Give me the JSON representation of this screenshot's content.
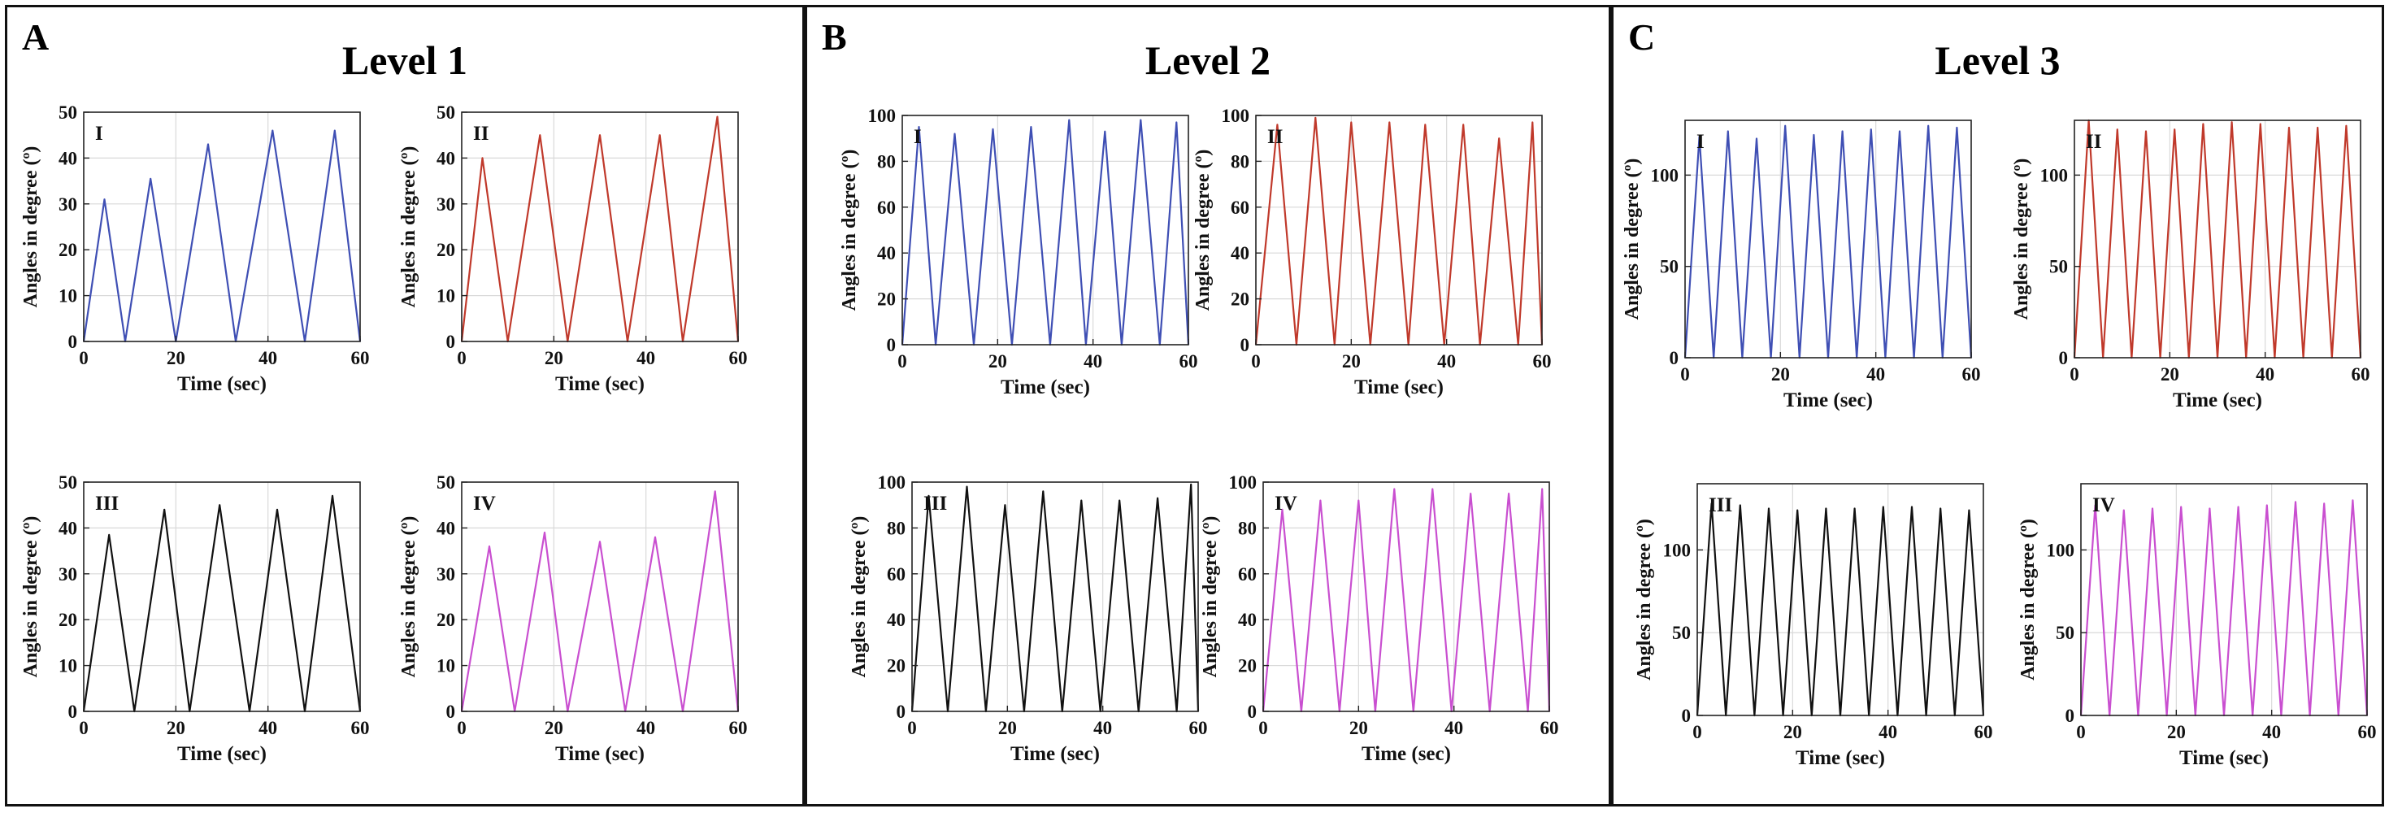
{
  "colors": {
    "blue": "#3f4fb4",
    "red": "#c0392b",
    "black": "#111111",
    "magenta": "#c94fd0",
    "grid": "#d9d9d9"
  },
  "panels": [
    {
      "letter": "A",
      "title": "Level 1"
    },
    {
      "letter": "B",
      "title": "Level 2"
    },
    {
      "letter": "C",
      "title": "Level 3"
    }
  ],
  "chart_data": [
    {
      "type": "line",
      "panel": "A",
      "subplot_label": "I",
      "color": "blue",
      "xlabel": "Time (sec)",
      "ylabel": "Angles in degree (º)",
      "xlim": [
        0,
        60
      ],
      "ylim": [
        0,
        50
      ],
      "xticks": [
        0,
        20,
        40,
        60
      ],
      "yticks": [
        0,
        10,
        20,
        30,
        40,
        50
      ],
      "grid": true,
      "x": [
        0,
        4.5,
        9,
        14.5,
        20,
        27,
        33,
        41,
        48,
        54.5,
        60
      ],
      "y": [
        0,
        31,
        0,
        35.5,
        0,
        43,
        0,
        46,
        0,
        46,
        0
      ]
    },
    {
      "type": "line",
      "panel": "A",
      "subplot_label": "II",
      "color": "red",
      "xlabel": "Time (sec)",
      "ylabel": "Angles in degree (º)",
      "xlim": [
        0,
        60
      ],
      "ylim": [
        0,
        50
      ],
      "xticks": [
        0,
        20,
        40,
        60
      ],
      "yticks": [
        0,
        10,
        20,
        30,
        40,
        50
      ],
      "grid": true,
      "x": [
        0,
        4.5,
        10,
        17,
        23,
        30,
        36,
        43,
        48,
        55.5,
        60
      ],
      "y": [
        0,
        40,
        0,
        45,
        0,
        45,
        0,
        45,
        0,
        49,
        0
      ]
    },
    {
      "type": "line",
      "panel": "A",
      "subplot_label": "III",
      "color": "black",
      "xlabel": "Time (sec)",
      "ylabel": "Angles in degree (º)",
      "xlim": [
        0,
        60
      ],
      "ylim": [
        0,
        50
      ],
      "xticks": [
        0,
        20,
        40,
        60
      ],
      "yticks": [
        0,
        10,
        20,
        30,
        40,
        50
      ],
      "grid": true,
      "x": [
        0,
        5.5,
        11,
        17.5,
        23,
        29.5,
        36,
        42,
        48,
        54,
        60
      ],
      "y": [
        0,
        38.5,
        0,
        44,
        0,
        45,
        0,
        44,
        0,
        47,
        0
      ]
    },
    {
      "type": "line",
      "panel": "A",
      "subplot_label": "IV",
      "color": "magenta",
      "xlabel": "Time (sec)",
      "ylabel": "Angles in degree (º)",
      "xlim": [
        0,
        60
      ],
      "ylim": [
        0,
        50
      ],
      "xticks": [
        0,
        20,
        40,
        60
      ],
      "yticks": [
        0,
        10,
        20,
        30,
        40,
        50
      ],
      "grid": true,
      "x": [
        0,
        6,
        11.5,
        18,
        23,
        30,
        35.5,
        42,
        48,
        55,
        60
      ],
      "y": [
        0,
        36,
        0,
        39,
        0,
        37,
        0,
        38,
        0,
        48,
        0
      ]
    },
    {
      "type": "line",
      "panel": "B",
      "subplot_label": "I",
      "color": "blue",
      "xlabel": "Time (sec)",
      "ylabel": "Angles in degree (º)",
      "xlim": [
        0,
        60
      ],
      "ylim": [
        0,
        100
      ],
      "xticks": [
        0,
        20,
        40,
        60
      ],
      "yticks": [
        0,
        20,
        40,
        60,
        80,
        100
      ],
      "grid": true,
      "x": [
        0,
        3.5,
        7,
        11,
        15,
        19,
        23,
        27,
        31,
        35,
        38.5,
        42.5,
        46,
        50,
        54,
        57.5,
        60
      ],
      "y": [
        0,
        95,
        0,
        92,
        0,
        94,
        0,
        95,
        0,
        98,
        0,
        93,
        0,
        98,
        0,
        97,
        0
      ]
    },
    {
      "type": "line",
      "panel": "B",
      "subplot_label": "II",
      "color": "red",
      "xlabel": "Time (sec)",
      "ylabel": "Angles in degree (º)",
      "xlim": [
        0,
        60
      ],
      "ylim": [
        0,
        100
      ],
      "xticks": [
        0,
        20,
        40,
        60
      ],
      "yticks": [
        0,
        20,
        40,
        60,
        80,
        100
      ],
      "grid": true,
      "x": [
        0,
        4.5,
        8.5,
        12.5,
        16.5,
        20,
        24,
        28,
        32,
        35.5,
        39.5,
        43.5,
        47,
        51,
        55,
        58,
        60
      ],
      "y": [
        0,
        96,
        0,
        99,
        0,
        97,
        0,
        97,
        0,
        96,
        0,
        96,
        0,
        90,
        0,
        97,
        0
      ]
    },
    {
      "type": "line",
      "panel": "B",
      "subplot_label": "III",
      "color": "black",
      "xlabel": "Time (sec)",
      "ylabel": "Angles in degree (º)",
      "xlim": [
        0,
        60
      ],
      "ylim": [
        0,
        100
      ],
      "xticks": [
        0,
        20,
        40,
        60
      ],
      "yticks": [
        0,
        20,
        40,
        60,
        80,
        100
      ],
      "grid": true,
      "x": [
        0,
        3.5,
        7.5,
        11.5,
        15.5,
        19.5,
        23.5,
        27.5,
        31.5,
        35.5,
        39.5,
        43.5,
        47.5,
        51.5,
        55.5,
        58.5,
        60
      ],
      "y": [
        0,
        94,
        0,
        98,
        0,
        90,
        0,
        96,
        0,
        92,
        0,
        92,
        0,
        93,
        0,
        99,
        0
      ]
    },
    {
      "type": "line",
      "panel": "B",
      "subplot_label": "IV",
      "color": "magenta",
      "xlabel": "Time (sec)",
      "ylabel": "Angles in degree (º)",
      "xlim": [
        0,
        60
      ],
      "ylim": [
        0,
        100
      ],
      "xticks": [
        0,
        20,
        40,
        60
      ],
      "yticks": [
        0,
        20,
        40,
        60,
        80,
        100
      ],
      "grid": true,
      "x": [
        0,
        4,
        8,
        12,
        16,
        20,
        23.5,
        27.5,
        31.5,
        35.5,
        39.5,
        43.5,
        47.5,
        51.5,
        55.5,
        58.5,
        60
      ],
      "y": [
        0,
        88,
        0,
        92,
        0,
        92,
        0,
        97,
        0,
        97,
        0,
        95,
        0,
        95,
        0,
        97,
        0
      ]
    },
    {
      "type": "line",
      "panel": "C",
      "subplot_label": "I",
      "color": "blue",
      "xlabel": "Time (sec)",
      "ylabel": "Angles in degree (º)",
      "xlim": [
        0,
        60
      ],
      "ylim": [
        0,
        130
      ],
      "xticks": [
        0,
        20,
        40,
        60
      ],
      "yticks": [
        0,
        50,
        100
      ],
      "grid": true,
      "x": [
        0,
        3,
        6,
        9,
        12,
        15,
        18,
        21,
        24,
        27,
        30,
        33,
        36,
        39,
        42,
        45,
        48,
        51,
        54,
        57,
        60
      ],
      "y": [
        0,
        121,
        0,
        124,
        0,
        120,
        0,
        127,
        0,
        122,
        0,
        124,
        0,
        125,
        0,
        124,
        0,
        127,
        0,
        126,
        0
      ]
    },
    {
      "type": "line",
      "panel": "C",
      "subplot_label": "II",
      "color": "red",
      "xlabel": "Time (sec)",
      "ylabel": "Angles in degree (º)",
      "xlim": [
        0,
        60
      ],
      "ylim": [
        0,
        130
      ],
      "xticks": [
        0,
        20,
        40,
        60
      ],
      "yticks": [
        0,
        50,
        100
      ],
      "grid": true,
      "x": [
        0,
        3,
        6,
        9,
        12,
        15,
        18,
        21,
        24,
        27,
        30,
        33,
        36,
        39,
        42,
        45,
        48,
        51,
        54,
        57,
        60
      ],
      "y": [
        0,
        130,
        0,
        125,
        0,
        124,
        0,
        125,
        0,
        128,
        0,
        129,
        0,
        128,
        0,
        126,
        0,
        126,
        0,
        127,
        0
      ]
    },
    {
      "type": "line",
      "panel": "C",
      "subplot_label": "III",
      "color": "black",
      "xlabel": "Time (sec)",
      "ylabel": "Angles in degree (º)",
      "xlim": [
        0,
        60
      ],
      "ylim": [
        0,
        140
      ],
      "xticks": [
        0,
        20,
        40,
        60
      ],
      "yticks": [
        0,
        50,
        100
      ],
      "grid": true,
      "x": [
        0,
        3,
        6,
        9,
        12,
        15,
        18,
        21,
        24,
        27,
        30,
        33,
        36,
        39,
        42,
        45,
        48,
        51,
        54,
        57,
        60
      ],
      "y": [
        0,
        128,
        0,
        127,
        0,
        125,
        0,
        124,
        0,
        125,
        0,
        125,
        0,
        126,
        0,
        126,
        0,
        125,
        0,
        124,
        0
      ]
    },
    {
      "type": "line",
      "panel": "C",
      "subplot_label": "IV",
      "color": "magenta",
      "xlabel": "Time (sec)",
      "ylabel": "Angles in degree (º)",
      "xlim": [
        0,
        60
      ],
      "ylim": [
        0,
        140
      ],
      "xticks": [
        0,
        20,
        40,
        60
      ],
      "yticks": [
        0,
        50,
        100
      ],
      "grid": true,
      "x": [
        0,
        3,
        6,
        9,
        12,
        15,
        18,
        21,
        24,
        27,
        30,
        33,
        36,
        39,
        42,
        45,
        48,
        51,
        54,
        57,
        60
      ],
      "y": [
        0,
        127,
        0,
        124,
        0,
        125,
        0,
        126,
        0,
        125,
        0,
        126,
        0,
        127,
        0,
        129,
        0,
        128,
        0,
        130,
        0
      ]
    }
  ]
}
